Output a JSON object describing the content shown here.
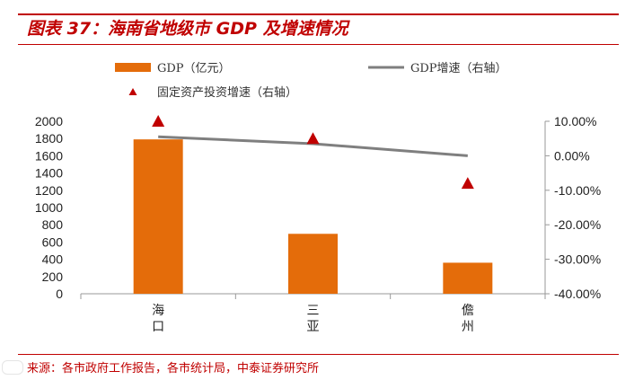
{
  "header": {
    "title": "图表 37：海南省地级市 GDP 及增速情况"
  },
  "footer": {
    "source_label": "来源：",
    "source_text": "各市政府工作报告，各市统计局，中泰证券研究所"
  },
  "colors": {
    "accent": "#c00000",
    "bar": "#e46c0a",
    "line": "#7f7f7f",
    "marker": "#c00000"
  },
  "chart_data": {
    "type": "bar",
    "title": "海南省地级市 GDP 及增速情况",
    "categories": [
      "海口",
      "三亚",
      "儋州"
    ],
    "category_chars": [
      [
        "海",
        "口"
      ],
      [
        "三",
        "亚"
      ],
      [
        "儋",
        "州"
      ]
    ],
    "series": [
      {
        "name": "GDP（亿元）",
        "kind": "bar",
        "axis": "left",
        "values": [
          1790,
          695,
          360
        ]
      },
      {
        "name": "GDP增速（右轴）",
        "kind": "line",
        "axis": "right",
        "values": [
          5.5,
          3.5,
          0.0
        ]
      },
      {
        "name": "固定资产投资增速（右轴）",
        "kind": "scatter",
        "axis": "right",
        "values": [
          10.0,
          5.0,
          -8.0
        ]
      }
    ],
    "left_axis": {
      "ylim": [
        0,
        2000
      ],
      "ticks": [
        0,
        200,
        400,
        600,
        800,
        1000,
        1200,
        1400,
        1600,
        1800,
        2000
      ],
      "tick_labels": [
        "0",
        "200",
        "400",
        "600",
        "800",
        "1000",
        "1200",
        "1400",
        "1600",
        "1800",
        "2000"
      ]
    },
    "right_axis": {
      "ylim": [
        -40,
        10
      ],
      "ticks": [
        10,
        0,
        -10,
        -20,
        -30,
        -40
      ],
      "tick_labels": [
        "10.00%",
        "0.00%",
        "-10.00%",
        "-20.00%",
        "-30.00%",
        "-40.00%"
      ]
    },
    "legend": {
      "placement": "top",
      "entries": [
        "GDP（亿元）",
        "GDP增速（右轴）",
        "固定资产投资增速（右轴）"
      ]
    },
    "grid": false
  }
}
